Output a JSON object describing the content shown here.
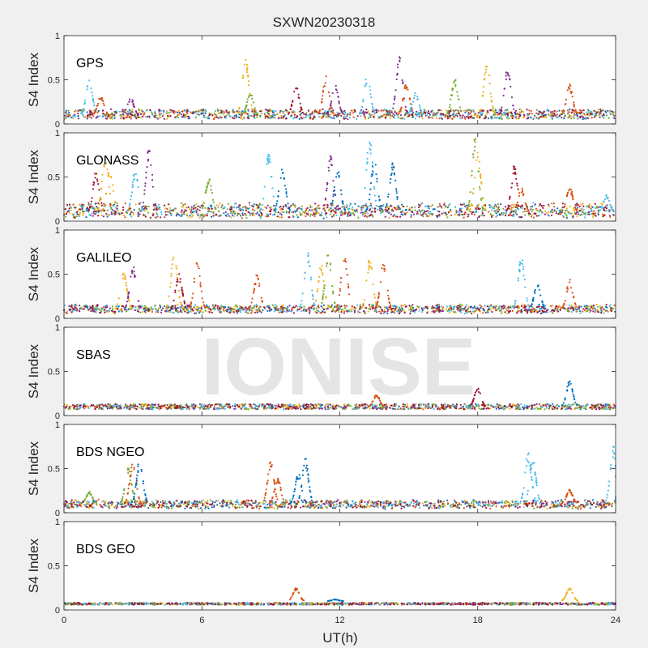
{
  "chart_data": {
    "type": "scatter",
    "title": "SXWN20230318",
    "xlabel": "UT(h)",
    "ylabel": "S4 Index",
    "xlim": [
      0,
      24
    ],
    "ylim": [
      0,
      1
    ],
    "xticks": [
      "0",
      "6",
      "12",
      "18",
      "24"
    ],
    "yticks": [
      "0",
      "0.5",
      "1"
    ],
    "watermark": "IONISE",
    "series_colors": [
      "#0072bd",
      "#d95319",
      "#edb120",
      "#7e2f8e",
      "#77ac30",
      "#4dbeee",
      "#a2142f"
    ],
    "panels": [
      {
        "label": "GPS",
        "base": [
          0.1,
          0.12
        ],
        "noise": 0.05,
        "peaks": [
          [
            1.1,
            0.52,
            5
          ],
          [
            1.6,
            0.32,
            1
          ],
          [
            2.9,
            0.3,
            3
          ],
          [
            7.9,
            0.77,
            2
          ],
          [
            8.1,
            0.36,
            4
          ],
          [
            10.1,
            0.44,
            6
          ],
          [
            11.4,
            0.54,
            1
          ],
          [
            11.8,
            0.46,
            3
          ],
          [
            13.2,
            0.56,
            5
          ],
          [
            14.6,
            0.81,
            3
          ],
          [
            14.9,
            0.47,
            1
          ],
          [
            15.3,
            0.36,
            5
          ],
          [
            17.0,
            0.52,
            4
          ],
          [
            18.4,
            0.7,
            2
          ],
          [
            19.3,
            0.64,
            3
          ],
          [
            22.0,
            0.45,
            1
          ]
        ]
      },
      {
        "label": "GLONASS",
        "base": [
          0.1,
          0.14
        ],
        "noise": 0.07,
        "peaks": [
          [
            1.4,
            0.58,
            6
          ],
          [
            1.8,
            0.78,
            2
          ],
          [
            2.0,
            0.62,
            2
          ],
          [
            3.1,
            0.58,
            5
          ],
          [
            3.7,
            0.84,
            3
          ],
          [
            6.3,
            0.5,
            4
          ],
          [
            8.9,
            0.78,
            5
          ],
          [
            9.5,
            0.62,
            0
          ],
          [
            11.6,
            0.74,
            3
          ],
          [
            11.9,
            0.6,
            0
          ],
          [
            13.3,
            0.98,
            5
          ],
          [
            13.5,
            0.72,
            0
          ],
          [
            14.3,
            0.66,
            0
          ],
          [
            17.9,
            0.98,
            4
          ],
          [
            18.0,
            0.8,
            2
          ],
          [
            19.6,
            0.64,
            6
          ],
          [
            19.9,
            0.38,
            1
          ],
          [
            22.0,
            0.4,
            1
          ],
          [
            23.6,
            0.3,
            5
          ]
        ]
      },
      {
        "label": "GALILEO",
        "base": [
          0.09,
          0.12
        ],
        "noise": 0.04,
        "peaks": [
          [
            2.6,
            0.55,
            2
          ],
          [
            3.0,
            0.62,
            3
          ],
          [
            4.8,
            0.76,
            2
          ],
          [
            5.0,
            0.52,
            6
          ],
          [
            5.8,
            0.66,
            1
          ],
          [
            8.4,
            0.5,
            1
          ],
          [
            10.6,
            0.75,
            5
          ],
          [
            11.2,
            0.62,
            2
          ],
          [
            11.5,
            0.78,
            4
          ],
          [
            12.2,
            0.76,
            1
          ],
          [
            13.3,
            0.7,
            2
          ],
          [
            13.9,
            0.67,
            1
          ],
          [
            19.9,
            0.72,
            5
          ],
          [
            20.6,
            0.42,
            0
          ],
          [
            22.0,
            0.44,
            1
          ]
        ]
      },
      {
        "label": "SBAS",
        "base": [
          0.1,
          0.1
        ],
        "noise": 0.03,
        "peaks": [
          [
            18.0,
            0.32,
            6
          ],
          [
            22.0,
            0.4,
            0
          ],
          [
            13.6,
            0.24,
            1
          ]
        ]
      },
      {
        "label": "BDS NGEO",
        "base": [
          0.08,
          0.11
        ],
        "noise": 0.04,
        "peaks": [
          [
            1.1,
            0.24,
            4
          ],
          [
            2.8,
            0.52,
            4
          ],
          [
            3.0,
            0.58,
            1
          ],
          [
            3.3,
            0.62,
            0
          ],
          [
            9.0,
            0.6,
            1
          ],
          [
            9.3,
            0.4,
            1
          ],
          [
            10.2,
            0.46,
            0
          ],
          [
            10.5,
            0.62,
            0
          ],
          [
            20.2,
            0.7,
            5
          ],
          [
            20.4,
            0.64,
            5
          ],
          [
            22.0,
            0.26,
            1
          ],
          [
            23.9,
            0.76,
            5
          ]
        ]
      },
      {
        "label": "BDS GEO",
        "base": [
          0.07,
          0.07
        ],
        "noise": 0.012,
        "peaks": [
          [
            10.1,
            0.25,
            1
          ],
          [
            22.0,
            0.26,
            2
          ],
          [
            11.8,
            0.12,
            0
          ]
        ]
      }
    ]
  }
}
